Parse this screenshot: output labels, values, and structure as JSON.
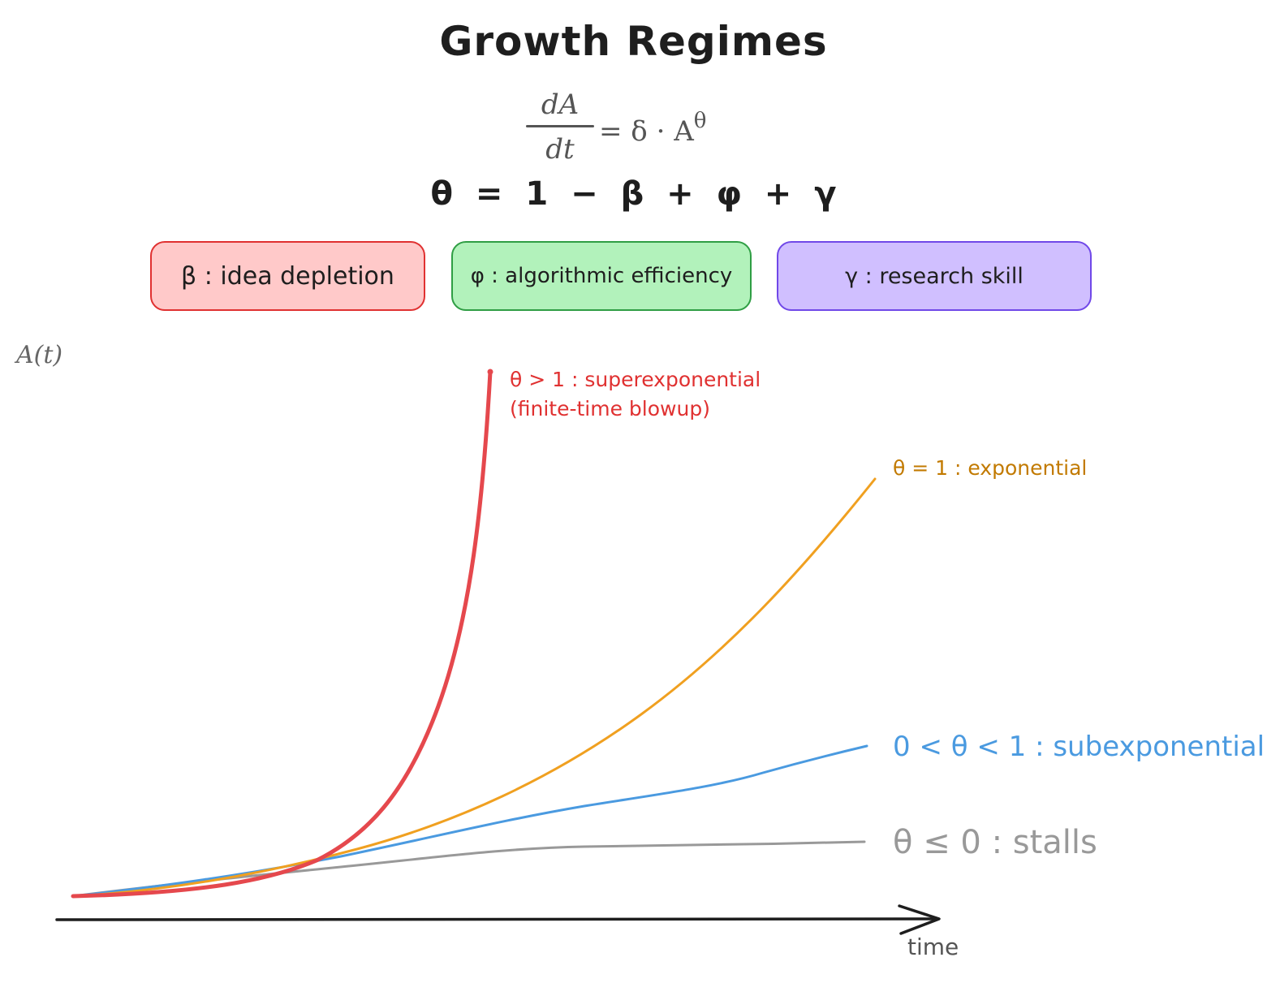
{
  "title": "Growth Regimes",
  "equation": {
    "numerator": "dA",
    "denominator": "dt",
    "rhs": "= δ · A",
    "exponent": "θ"
  },
  "theta_definition": "θ = 1 − β + φ + γ",
  "parameters": [
    {
      "label": "β : idea depletion",
      "fill": "#ffc9c9",
      "stroke": "#e03131"
    },
    {
      "label": "φ : algorithmic efficiency",
      "fill": "#b2f2bb",
      "stroke": "#2f9e44"
    },
    {
      "label": "γ : research skill",
      "fill": "#d0bfff",
      "stroke": "#7048e8"
    }
  ],
  "axes": {
    "y_label": "A(t)",
    "x_label": "time"
  },
  "curves": [
    {
      "label_line1": "θ > 1 : superexponential",
      "label_line2": "(finite-time blowup)",
      "color": "#e5484d"
    },
    {
      "label": "θ = 1 : exponential",
      "color": "#f0a020"
    },
    {
      "label": "0 < θ < 1 : subexponential",
      "color": "#4a9ae0"
    },
    {
      "label": "θ ≤ 0 : stalls",
      "color": "#999999"
    }
  ]
}
